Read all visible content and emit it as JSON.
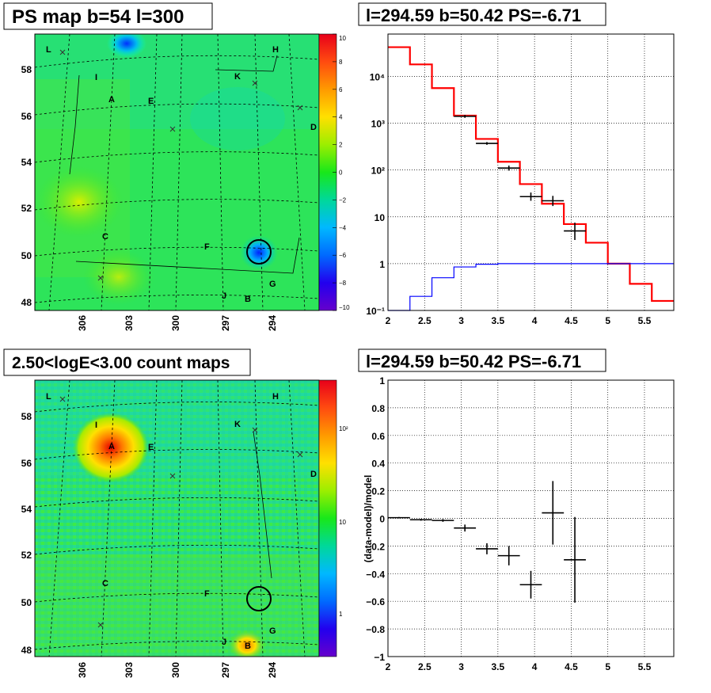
{
  "panels": {
    "top_left": {
      "title": "PS map b=54 l=300"
    },
    "top_right": {
      "title": "l=294.59 b=50.42 PS=-6.71"
    },
    "bottom_left": {
      "title": "2.50<logE<3.00 count maps"
    },
    "bottom_right": {
      "title": "l=294.59 b=50.42 PS=-6.71"
    }
  },
  "maps": {
    "lat_ticks": [
      "58",
      "56",
      "54",
      "52",
      "50",
      "48"
    ],
    "lon_ticks": [
      "306",
      "303",
      "300",
      "297",
      "294"
    ],
    "source_labels": [
      "L",
      "H",
      "I",
      "K",
      "A",
      "E",
      "D",
      "C",
      "F",
      "G",
      "J",
      "B"
    ],
    "ps_colorbar": {
      "ticks": [
        "10",
        "8",
        "6",
        "4",
        "2",
        "0",
        "−2",
        "−4",
        "−6",
        "−8",
        "−10"
      ],
      "range": [
        -10,
        10
      ]
    },
    "count_colorbar": {
      "ticks": [
        "10²",
        "10",
        "1"
      ]
    },
    "marked_source": {
      "l": 294.59,
      "b": 50.42
    }
  },
  "chart_data": [
    {
      "type": "step",
      "title": "l=294.59 b=50.42 PS=-6.71",
      "xlabel": "",
      "ylabel": "",
      "log_y": true,
      "xlim": [
        2.0,
        5.9
      ],
      "ylim": [
        0.1,
        80000
      ],
      "x_ticks": [
        "2",
        "2.5",
        "3",
        "3.5",
        "4",
        "4.5",
        "5",
        "5.5"
      ],
      "y_ticks": [
        "10⁻¹",
        "1",
        "10",
        "10²",
        "10³",
        "10⁴"
      ],
      "bin_edges": [
        2.0,
        2.3,
        2.6,
        2.9,
        3.2,
        3.5,
        3.8,
        4.1,
        4.4,
        4.7,
        5.0,
        5.3,
        5.6,
        5.9
      ],
      "series": [
        {
          "color": "#ff0000",
          "values": [
            42000,
            18000,
            5600,
            1450,
            460,
            150,
            50,
            19,
            7,
            2.8,
            1.0,
            0.37,
            0.16
          ]
        },
        {
          "color": "#0000ff",
          "values": [
            0.1,
            0.2,
            0.5,
            0.85,
            0.97,
            1.0,
            1.0,
            1.0,
            1.0,
            1.0,
            1.0,
            1.0,
            1.0
          ]
        }
      ],
      "points": [
        {
          "x": 3.05,
          "xerr": 0.15,
          "y": 1400,
          "ylo": 1300,
          "yhi": 1500
        },
        {
          "x": 3.35,
          "xerr": 0.15,
          "y": 370,
          "ylo": 345,
          "yhi": 395
        },
        {
          "x": 3.65,
          "xerr": 0.15,
          "y": 110,
          "ylo": 97,
          "yhi": 124
        },
        {
          "x": 3.95,
          "xerr": 0.15,
          "y": 27,
          "ylo": 22,
          "yhi": 33
        },
        {
          "x": 4.25,
          "xerr": 0.15,
          "y": 22,
          "ylo": 17,
          "yhi": 28
        },
        {
          "x": 4.55,
          "xerr": 0.15,
          "y": 5,
          "ylo": 3.2,
          "yhi": 7.5
        }
      ]
    },
    {
      "type": "scatter",
      "title": "l=294.59 b=50.42 PS=-6.71",
      "xlabel": "",
      "ylabel": "(data-model)/model",
      "xlim": [
        2.0,
        5.9
      ],
      "ylim": [
        -1,
        1
      ],
      "x_ticks": [
        "2",
        "2.5",
        "3",
        "3.5",
        "4",
        "4.5",
        "5",
        "5.5"
      ],
      "y_ticks": [
        "−1",
        "−0.8",
        "−0.6",
        "−0.4",
        "−0.2",
        "0",
        "0.2",
        "0.4",
        "0.6",
        "0.8",
        "1"
      ],
      "points": [
        {
          "x": 2.15,
          "xerr": 0.15,
          "y": 0.005,
          "yerr": 0.005
        },
        {
          "x": 2.45,
          "xerr": 0.15,
          "y": -0.01,
          "yerr": 0.007
        },
        {
          "x": 2.75,
          "xerr": 0.15,
          "y": -0.015,
          "yerr": 0.01
        },
        {
          "x": 3.05,
          "xerr": 0.15,
          "y": -0.07,
          "yerr": 0.025
        },
        {
          "x": 3.35,
          "xerr": 0.15,
          "y": -0.22,
          "yerr": 0.04
        },
        {
          "x": 3.65,
          "xerr": 0.15,
          "y": -0.27,
          "yerr": 0.07
        },
        {
          "x": 3.95,
          "xerr": 0.15,
          "y": -0.48,
          "yerr": 0.1
        },
        {
          "x": 4.25,
          "xerr": 0.15,
          "y": 0.04,
          "yerr": 0.23
        },
        {
          "x": 4.55,
          "xerr": 0.15,
          "y": -0.3,
          "yerr": 0.31
        }
      ]
    }
  ]
}
